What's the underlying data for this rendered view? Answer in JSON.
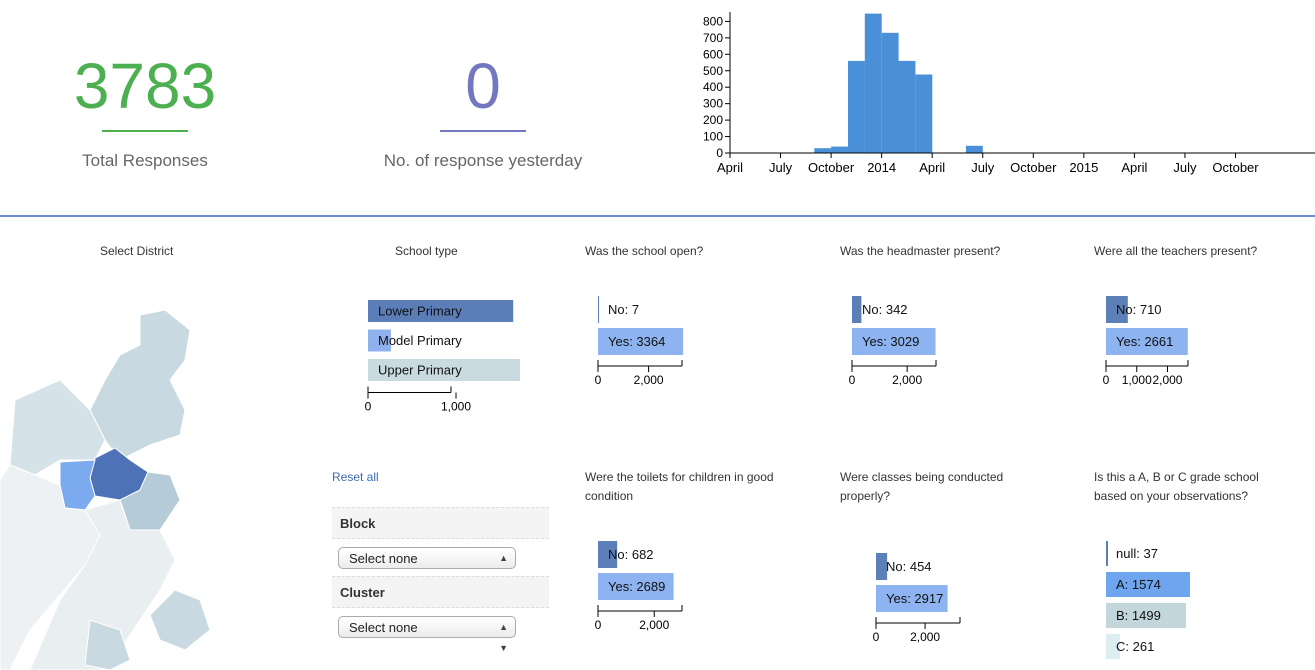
{
  "kpis": {
    "total": {
      "value": "3783",
      "label": "Total Responses",
      "color": "#4caf50"
    },
    "yesterday": {
      "value": "0",
      "label": "No. of response yesterday",
      "color": "#7377c0"
    }
  },
  "timeline": {
    "y_ticks": [
      "0",
      "100",
      "200",
      "300",
      "400",
      "500",
      "600",
      "700",
      "800"
    ],
    "x_ticks": [
      "April",
      "July",
      "October",
      "2014",
      "April",
      "July",
      "October",
      "2015",
      "April",
      "July",
      "October"
    ],
    "color": "#4a90d9"
  },
  "chart_data": [
    {
      "type": "bar",
      "title": "",
      "xlabel": "",
      "ylabel": "",
      "ylim": [
        0,
        870
      ],
      "x": [
        "2013-07",
        "2013-08",
        "2013-09",
        "2013-10",
        "2013-11",
        "2013-12",
        "2014-01",
        "2014-02",
        "2014-03",
        "2014-04",
        "2014-05",
        "2014-06"
      ],
      "values": [
        0,
        0,
        30,
        40,
        575,
        870,
        750,
        575,
        490,
        0,
        0,
        45
      ]
    },
    {
      "type": "bar",
      "title": "School type",
      "categories": [
        "Lower Primary",
        "Model Primary",
        "Upper Primary"
      ],
      "values": [
        1650,
        260,
        1870
      ],
      "xticks": [
        "0",
        "1,000"
      ],
      "xlim": [
        0,
        2000
      ]
    },
    {
      "type": "bar",
      "title": "Was the school open?",
      "categories": [
        "No: 7",
        "Yes: 3364"
      ],
      "values": [
        7,
        3364
      ],
      "xticks": [
        "0",
        "2,000"
      ],
      "xlim": [
        0,
        3400
      ]
    },
    {
      "type": "bar",
      "title": "Was the headmaster present?",
      "categories": [
        "No: 342",
        "Yes: 3029"
      ],
      "values": [
        342,
        3029
      ],
      "xticks": [
        "0",
        "2,000"
      ],
      "xlim": [
        0,
        3300
      ]
    },
    {
      "type": "bar",
      "title": "Were all the teachers present?",
      "categories": [
        "No: 710",
        "Yes: 2661"
      ],
      "values": [
        710,
        2661
      ],
      "xticks": [
        "0",
        "1,000",
        "2,000"
      ],
      "xlim": [
        0,
        2700
      ]
    },
    {
      "type": "bar",
      "title": "Were the toilets for children in good condition",
      "categories": [
        "No: 682",
        "Yes: 2689"
      ],
      "values": [
        682,
        2689
      ],
      "xticks": [
        "0",
        "2,000"
      ],
      "xlim": [
        0,
        3200
      ]
    },
    {
      "type": "bar",
      "title": "Were classes being conducted properly?",
      "categories": [
        "No: 454",
        "Yes: 2917"
      ],
      "values": [
        454,
        2917
      ],
      "xticks": [
        "0",
        "2,000"
      ],
      "xlim": [
        0,
        3300
      ]
    },
    {
      "type": "bar",
      "title": "Is this a A, B or C grade school based on your observations?",
      "categories": [
        "null: 37",
        "A: 1574",
        "B: 1499",
        "C: 261"
      ],
      "values": [
        37,
        1574,
        1499,
        261
      ],
      "xticks": [],
      "xlim": [
        0,
        1574
      ]
    }
  ],
  "map": {
    "title": "Select District"
  },
  "filters": {
    "reset_label": "Reset all",
    "block_label": "Block",
    "block_value": "Select none",
    "cluster_label": "Cluster",
    "cluster_value": "Select none"
  }
}
